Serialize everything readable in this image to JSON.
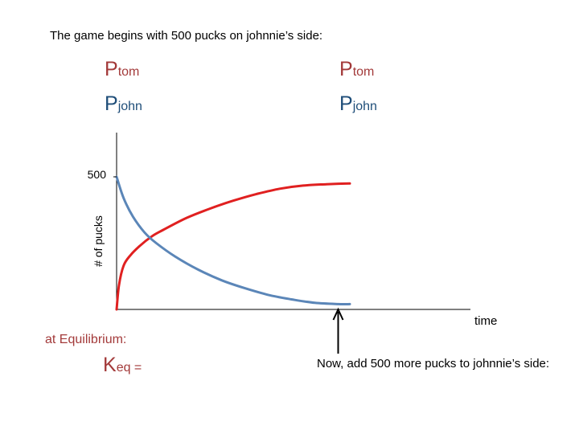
{
  "intro_text": "The game begins with 500 pucks on johnnie’s side:",
  "labels": {
    "left": {
      "tom_p": "P",
      "tom_sub": "tom",
      "john_p": "P",
      "john_sub": "john"
    },
    "right": {
      "tom_p": "P",
      "tom_sub": "tom",
      "john_p": "P",
      "john_sub": "john"
    }
  },
  "equilibrium_label": "at Equilibrium:",
  "keq": {
    "k": "K",
    "sub": "eq",
    "equals": " ="
  },
  "now_text": "Now, add 500 more pucks to johnnie’s side:",
  "colors": {
    "tom_series": "#e02020",
    "john_series": "#5b86b8",
    "tom_text": "#a33a3a",
    "john_text": "#1f4e79",
    "axis": "#000000"
  },
  "chart_data": {
    "type": "line",
    "title": "",
    "xlabel": "time",
    "ylabel": "# of pucks",
    "y_ticks": [
      500
    ],
    "ylim": [
      0,
      500
    ],
    "xlim": [
      0,
      1
    ],
    "grid": false,
    "legend": "none",
    "arrow_annotation_x": 0.95,
    "series": [
      {
        "color": "#e02020",
        "x": [
          0,
          0.01,
          0.03,
          0.06,
          0.1,
          0.15,
          0.2,
          0.3,
          0.4,
          0.5,
          0.6,
          0.7,
          0.8,
          0.9,
          1.0
        ],
        "values": [
          0,
          90,
          165,
          205,
          240,
          275,
          300,
          345,
          380,
          410,
          435,
          455,
          467,
          472,
          475
        ]
      },
      {
        "color": "#5b86b8",
        "x": [
          0,
          0.03,
          0.07,
          0.12,
          0.17,
          0.25,
          0.35,
          0.45,
          0.55,
          0.65,
          0.75,
          0.85,
          0.95,
          1.0
        ],
        "values": [
          500,
          420,
          350,
          290,
          250,
          200,
          150,
          110,
          80,
          55,
          38,
          25,
          20,
          20
        ]
      }
    ]
  }
}
